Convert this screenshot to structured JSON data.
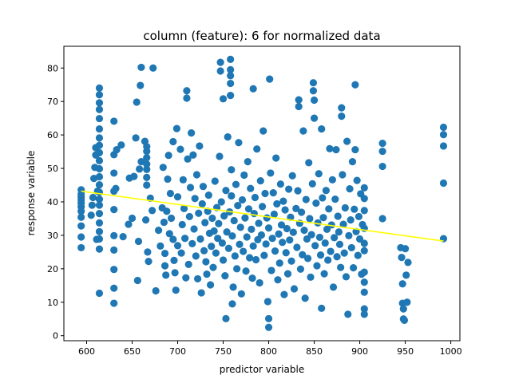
{
  "chart_data": {
    "type": "scatter",
    "title": "column (feature): 6 for normalized data",
    "xlabel": "predictor variable",
    "ylabel": "response variable",
    "xlim": [
      575,
      1010
    ],
    "ylim": [
      -1.5,
      86.5
    ],
    "xticks": [
      600,
      650,
      700,
      750,
      800,
      850,
      900,
      950,
      1000
    ],
    "yticks": [
      0,
      10,
      20,
      30,
      40,
      50,
      60,
      70,
      80
    ],
    "grid": false,
    "legend": "none",
    "colors": {
      "points": "#1f77b4",
      "fit_line": "#ffff00"
    },
    "fit_line": {
      "x": [
        594,
        992
      ],
      "y": [
        43.2,
        28.3
      ]
    },
    "scatter_points": [
      [
        594,
        26.3
      ],
      [
        594,
        29.5
      ],
      [
        594,
        32.8
      ],
      [
        594,
        35.4
      ],
      [
        594,
        37.2
      ],
      [
        594,
        38.5
      ],
      [
        594,
        39.6
      ],
      [
        594,
        40.5
      ],
      [
        594,
        41.4
      ],
      [
        594,
        42.3
      ],
      [
        594,
        43.6
      ],
      [
        605,
        36.0
      ],
      [
        606,
        39.0
      ],
      [
        607,
        41.3
      ],
      [
        608,
        47.0
      ],
      [
        609,
        50.3
      ],
      [
        610,
        54.0
      ],
      [
        610,
        56.2
      ],
      [
        611,
        28.8
      ],
      [
        612,
        43.2
      ],
      [
        614,
        12.7
      ],
      [
        614,
        25.9
      ],
      [
        614,
        28.9
      ],
      [
        614,
        31.1
      ],
      [
        614,
        33.7
      ],
      [
        614,
        36.5
      ],
      [
        614,
        39.0
      ],
      [
        614,
        40.8
      ],
      [
        614,
        42.9
      ],
      [
        614,
        45.1
      ],
      [
        614,
        47.5
      ],
      [
        614,
        49.9
      ],
      [
        614,
        52.3
      ],
      [
        614,
        54.7
      ],
      [
        614,
        56.9
      ],
      [
        614,
        59.1
      ],
      [
        614,
        61.8
      ],
      [
        614,
        64.9
      ],
      [
        614,
        67.6
      ],
      [
        614,
        69.6
      ],
      [
        614,
        72.0
      ],
      [
        614,
        74.0
      ],
      [
        630,
        9.7
      ],
      [
        630,
        14.2
      ],
      [
        630,
        19.8
      ],
      [
        630,
        25.6
      ],
      [
        630,
        29.9
      ],
      [
        630,
        37.7
      ],
      [
        630,
        43.2
      ],
      [
        630,
        48.6
      ],
      [
        630,
        54.1
      ],
      [
        630,
        64.1
      ],
      [
        632,
        44.0
      ],
      [
        633,
        55.6
      ],
      [
        638,
        57.0
      ],
      [
        640,
        29.6
      ],
      [
        646,
        33.3
      ],
      [
        647,
        47.1
      ],
      [
        650,
        35.1
      ],
      [
        652,
        47.6
      ],
      [
        654,
        59.1
      ],
      [
        655,
        69.8
      ],
      [
        656,
        16.5
      ],
      [
        657,
        28.2
      ],
      [
        658,
        49.8
      ],
      [
        659,
        74.8
      ],
      [
        660,
        80.2
      ],
      [
        660,
        52.0
      ],
      [
        664,
        58.1
      ],
      [
        665,
        34.6
      ],
      [
        666,
        45.0
      ],
      [
        666,
        47.3
      ],
      [
        666,
        49.7
      ],
      [
        666,
        51.3
      ],
      [
        666,
        53.2
      ],
      [
        666,
        55.1
      ],
      [
        666,
        56.5
      ],
      [
        667,
        25.0
      ],
      [
        668,
        22.2
      ],
      [
        670,
        41.1
      ],
      [
        672,
        37.4
      ],
      [
        673,
        80.0
      ],
      [
        676,
        13.4
      ],
      [
        679,
        31.5
      ],
      [
        681,
        26.8
      ],
      [
        683,
        38.2
      ],
      [
        684,
        50.3
      ],
      [
        685,
        33.9
      ],
      [
        686,
        24.6
      ],
      [
        686,
        20.9
      ],
      [
        687,
        18.1
      ],
      [
        688,
        37.2
      ],
      [
        689,
        46.8
      ],
      [
        690,
        53.9
      ],
      [
        691,
        30.5
      ],
      [
        692,
        42.5
      ],
      [
        693,
        35.1
      ],
      [
        695,
        28.8
      ],
      [
        695,
        58.0
      ],
      [
        696,
        22.5
      ],
      [
        697,
        18.8
      ],
      [
        698,
        13.6
      ],
      [
        699,
        61.9
      ],
      [
        700,
        26.9
      ],
      [
        700,
        41.5
      ],
      [
        703,
        55.7
      ],
      [
        704,
        24.7
      ],
      [
        705,
        33.2
      ],
      [
        706,
        46.6
      ],
      [
        707,
        38.0
      ],
      [
        708,
        29.1
      ],
      [
        709,
        17.3
      ],
      [
        710,
        73.2
      ],
      [
        710,
        71.0
      ],
      [
        711,
        52.8
      ],
      [
        712,
        21.3
      ],
      [
        713,
        35.6
      ],
      [
        714,
        44.3
      ],
      [
        715,
        60.6
      ],
      [
        716,
        27.5
      ],
      [
        717,
        54.0
      ],
      [
        718,
        31.9
      ],
      [
        719,
        41.0
      ],
      [
        720,
        23.8
      ],
      [
        721,
        48.1
      ],
      [
        722,
        17.0
      ],
      [
        723,
        36.6
      ],
      [
        724,
        56.7
      ],
      [
        725,
        28.9
      ],
      [
        726,
        12.8
      ],
      [
        727,
        39.4
      ],
      [
        728,
        44.6
      ],
      [
        729,
        25.4
      ],
      [
        730,
        33.8
      ],
      [
        731,
        22.1
      ],
      [
        732,
        18.4
      ],
      [
        733,
        37.2
      ],
      [
        734,
        42.0
      ],
      [
        735,
        30.6
      ],
      [
        736,
        15.2
      ],
      [
        737,
        26.7
      ],
      [
        738,
        35.1
      ],
      [
        739,
        20.4
      ],
      [
        740,
        31.3
      ],
      [
        741,
        46.2
      ],
      [
        742,
        24.7
      ],
      [
        743,
        38.3
      ],
      [
        744,
        29.1
      ],
      [
        745,
        33.5
      ],
      [
        746,
        53.6
      ],
      [
        747,
        81.7
      ],
      [
        747,
        79.1
      ],
      [
        748,
        40.0
      ],
      [
        749,
        27.7
      ],
      [
        750,
        22.6
      ],
      [
        750,
        70.8
      ],
      [
        751,
        35.8
      ],
      [
        752,
        17.9
      ],
      [
        753,
        43.4
      ],
      [
        753,
        5.1
      ],
      [
        754,
        31.0
      ],
      [
        755,
        59.4
      ],
      [
        756,
        26.1
      ],
      [
        757,
        37.0
      ],
      [
        758,
        82.6
      ],
      [
        758,
        79.5
      ],
      [
        758,
        77.7
      ],
      [
        758,
        75.4
      ],
      [
        758,
        71.8
      ],
      [
        759,
        49.6
      ],
      [
        759,
        41.8
      ],
      [
        760,
        29.8
      ],
      [
        760,
        9.5
      ],
      [
        761,
        14.5
      ],
      [
        762,
        34.4
      ],
      [
        763,
        23.8
      ],
      [
        764,
        45.2
      ],
      [
        765,
        20.0
      ],
      [
        766,
        38.9
      ],
      [
        767,
        57.7
      ],
      [
        768,
        27.3
      ],
      [
        769,
        32.4
      ],
      [
        770,
        12.5
      ],
      [
        771,
        40.6
      ],
      [
        772,
        25.2
      ],
      [
        773,
        48.0
      ],
      [
        774,
        35.2
      ],
      [
        775,
        19.3
      ],
      [
        776,
        29.5
      ],
      [
        777,
        52.0
      ],
      [
        778,
        37.9
      ],
      [
        779,
        23.3
      ],
      [
        780,
        44.0
      ],
      [
        781,
        31.8
      ],
      [
        782,
        17.2
      ],
      [
        783,
        73.8
      ],
      [
        783,
        26.8
      ],
      [
        784,
        36.5
      ],
      [
        785,
        41.3
      ],
      [
        786,
        22.7
      ],
      [
        787,
        55.8
      ],
      [
        788,
        28.7
      ],
      [
        789,
        33.6
      ],
      [
        790,
        15.8
      ],
      [
        791,
        46.3
      ],
      [
        792,
        30.1
      ],
      [
        793,
        38.6
      ],
      [
        794,
        61.2
      ],
      [
        795,
        24.0
      ],
      [
        796,
        42.5
      ],
      [
        797,
        27.4
      ],
      [
        798,
        35.2
      ],
      [
        799,
        10.2
      ],
      [
        800,
        32.2
      ],
      [
        800,
        5.1
      ],
      [
        800,
        2.5
      ],
      [
        801,
        76.7
      ],
      [
        802,
        48.6
      ],
      [
        803,
        19.5
      ],
      [
        804,
        29.1
      ],
      [
        805,
        42.7
      ],
      [
        806,
        36.3
      ],
      [
        807,
        25.3
      ],
      [
        808,
        53.1
      ],
      [
        809,
        39.4
      ],
      [
        810,
        16.7
      ],
      [
        811,
        30.4
      ],
      [
        812,
        21.7
      ],
      [
        813,
        45.3
      ],
      [
        814,
        33.1
      ],
      [
        815,
        27.9
      ],
      [
        816,
        40.2
      ],
      [
        817,
        12.3
      ],
      [
        818,
        37.6
      ],
      [
        819,
        24.8
      ],
      [
        820,
        32.0
      ],
      [
        821,
        18.5
      ],
      [
        822,
        43.8
      ],
      [
        823,
        28.6
      ],
      [
        824,
        35.4
      ],
      [
        825,
        22.3
      ],
      [
        826,
        47.8
      ],
      [
        827,
        30.9
      ],
      [
        828,
        14.0
      ],
      [
        830,
        38.0
      ],
      [
        831,
        26.4
      ],
      [
        832,
        43.3
      ],
      [
        833,
        70.5
      ],
      [
        833,
        68.5
      ],
      [
        834,
        33.6
      ],
      [
        835,
        19.9
      ],
      [
        836,
        36.9
      ],
      [
        837,
        24.2
      ],
      [
        838,
        61.2
      ],
      [
        839,
        31.5
      ],
      [
        840,
        11.2
      ],
      [
        841,
        40.7
      ],
      [
        842,
        28.9
      ],
      [
        843,
        23.1
      ],
      [
        844,
        51.7
      ],
      [
        845,
        35.0
      ],
      [
        846,
        17.5
      ],
      [
        847,
        30.2
      ],
      [
        848,
        45.4
      ],
      [
        849,
        75.6
      ],
      [
        849,
        73.2
      ],
      [
        850,
        70.4
      ],
      [
        850,
        65.0
      ],
      [
        851,
        26.9
      ],
      [
        852,
        39.6
      ],
      [
        853,
        20.9
      ],
      [
        854,
        33.7
      ],
      [
        855,
        48.4
      ],
      [
        856,
        29.4
      ],
      [
        857,
        24.1
      ],
      [
        858,
        61.8
      ],
      [
        858,
        8.2
      ],
      [
        859,
        41.2
      ],
      [
        860,
        35.3
      ],
      [
        861,
        18.5
      ],
      [
        862,
        27.7
      ],
      [
        863,
        43.4
      ],
      [
        864,
        31.8
      ],
      [
        865,
        22.6
      ],
      [
        866,
        37.9
      ],
      [
        867,
        55.9
      ],
      [
        868,
        25.2
      ],
      [
        869,
        33.1
      ],
      [
        870,
        46.6
      ],
      [
        871,
        14.5
      ],
      [
        872,
        29.3
      ],
      [
        873,
        40.8
      ],
      [
        874,
        55.6
      ],
      [
        875,
        23.6
      ],
      [
        876,
        35.7
      ],
      [
        877,
        31.0
      ],
      [
        878,
        27.3
      ],
      [
        879,
        20.4
      ],
      [
        880,
        68.1
      ],
      [
        880,
        65.6
      ],
      [
        881,
        48.1
      ],
      [
        882,
        33.3
      ],
      [
        883,
        24.7
      ],
      [
        884,
        38.2
      ],
      [
        885,
        17.6
      ],
      [
        886,
        58.1
      ],
      [
        887,
        6.4
      ],
      [
        888,
        29.9
      ],
      [
        889,
        43.9
      ],
      [
        890,
        34.6
      ],
      [
        891,
        26.3
      ],
      [
        892,
        52.0
      ],
      [
        893,
        20.3
      ],
      [
        894,
        37.8
      ],
      [
        895,
        75.0
      ],
      [
        895,
        55.6
      ],
      [
        896,
        31.1
      ],
      [
        897,
        46.4
      ],
      [
        898,
        24.0
      ],
      [
        899,
        35.6
      ],
      [
        900,
        28.9
      ],
      [
        901,
        42.4
      ],
      [
        902,
        18.4
      ],
      [
        903,
        33.2
      ],
      [
        905,
        44.2
      ],
      [
        905,
        41.0
      ],
      [
        905,
        37.4
      ],
      [
        905,
        32.1
      ],
      [
        905,
        27.6
      ],
      [
        905,
        25.4
      ],
      [
        905,
        19.0
      ],
      [
        905,
        16.0
      ],
      [
        905,
        13.0
      ],
      [
        905,
        8.0
      ],
      [
        905,
        6.4
      ],
      [
        925,
        57.5
      ],
      [
        925,
        55.1
      ],
      [
        925,
        50.6
      ],
      [
        925,
        35.0
      ],
      [
        945,
        26.3
      ],
      [
        946,
        23.4
      ],
      [
        947,
        15.5
      ],
      [
        947,
        9.7
      ],
      [
        948,
        8.0
      ],
      [
        948,
        5.0
      ],
      [
        949,
        4.6
      ],
      [
        950,
        26.0
      ],
      [
        951,
        18.1
      ],
      [
        952,
        10.0
      ],
      [
        953,
        21.9
      ],
      [
        992,
        62.3
      ],
      [
        992,
        60.1
      ],
      [
        992,
        56.7
      ],
      [
        992,
        45.6
      ],
      [
        992,
        29.0
      ]
    ]
  }
}
